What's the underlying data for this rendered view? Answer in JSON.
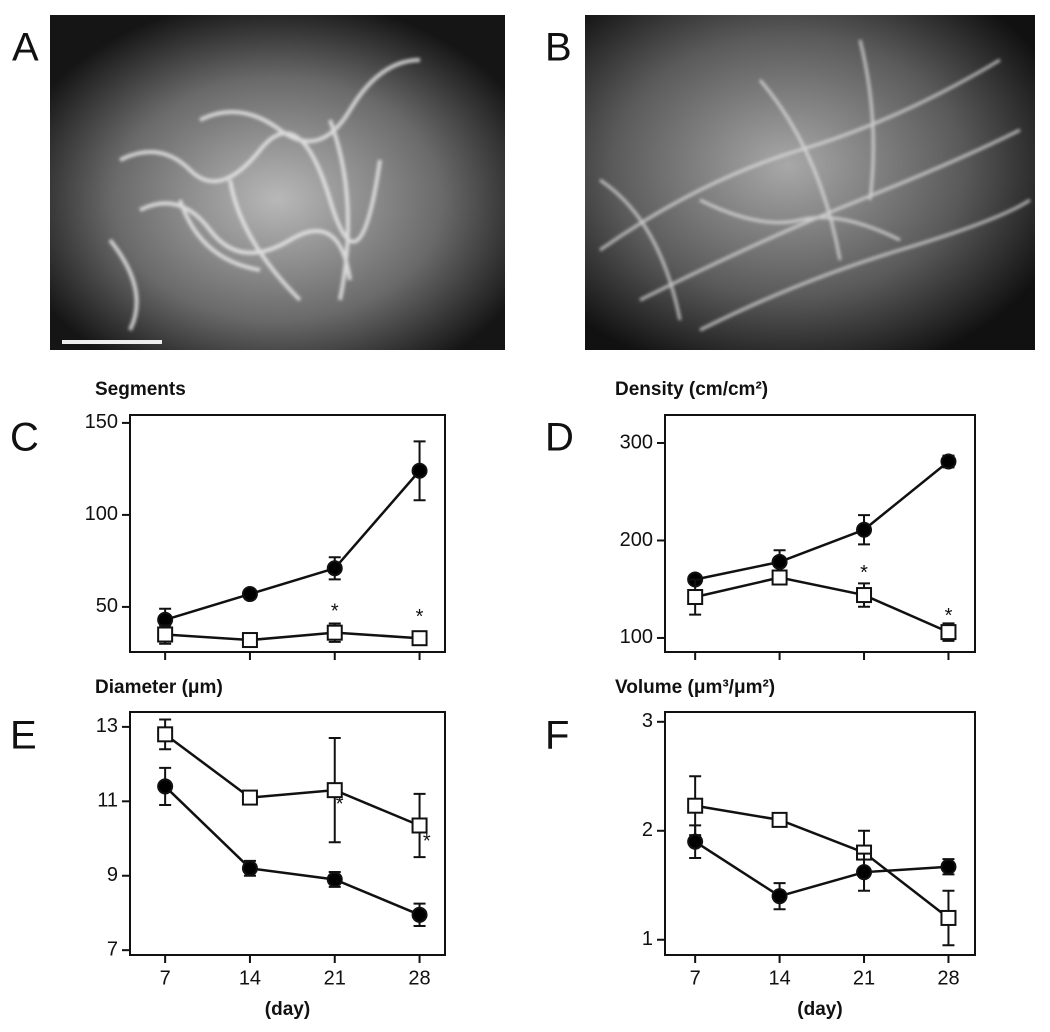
{
  "images": [
    {
      "label": "A"
    },
    {
      "label": "B"
    }
  ],
  "chart_data": [
    {
      "type": "line",
      "label": "C",
      "title": "Segments",
      "x": [
        7,
        14,
        21,
        28
      ],
      "xlim": [
        4.1,
        30.1
      ],
      "xticks": [
        7,
        14,
        21,
        28
      ],
      "xtick_labels": false,
      "ylim": [
        25.5,
        154.3
      ],
      "yticks": [
        50,
        100,
        150
      ],
      "series": [
        {
          "marker": "circle",
          "color": "#000000",
          "values": [
            43,
            57,
            71,
            124
          ],
          "errors": [
            6,
            2,
            6,
            16
          ]
        },
        {
          "marker": "square",
          "color": "#ffffff",
          "values": [
            35,
            32,
            36,
            33
          ],
          "errors": [
            5,
            3,
            5,
            3
          ]
        }
      ],
      "annotations": [
        {
          "text": "*",
          "x": 21,
          "y": 47
        },
        {
          "text": "*",
          "x": 28,
          "y": 44
        }
      ]
    },
    {
      "type": "line",
      "label": "D",
      "title": "Density (cm/cm²)",
      "x": [
        7,
        14,
        21,
        28
      ],
      "xlim": [
        4.5,
        30.2
      ],
      "xticks": [
        7,
        14,
        21,
        28
      ],
      "xtick_labels": false,
      "ylim": [
        85.6,
        328.7
      ],
      "yticks": [
        100,
        200,
        300
      ],
      "series": [
        {
          "marker": "circle",
          "color": "#000000",
          "values": [
            160,
            178,
            211,
            281
          ],
          "errors": [
            3,
            12,
            15,
            6
          ]
        },
        {
          "marker": "square",
          "color": "#ffffff",
          "values": [
            142,
            162,
            144,
            106
          ],
          "errors": [
            18,
            5,
            12,
            9
          ]
        }
      ],
      "annotations": [
        {
          "text": "*",
          "x": 21,
          "y": 166
        },
        {
          "text": "*",
          "x": 28,
          "y": 122
        }
      ]
    },
    {
      "type": "line",
      "label": "E",
      "title": "Diameter (μm)",
      "x": [
        7,
        14,
        21,
        28
      ],
      "xlim": [
        4.1,
        30.1
      ],
      "xticks": [
        7,
        14,
        21,
        28
      ],
      "xtick_labels": true,
      "xlabel": "(day)",
      "ylim": [
        6.87,
        13.4
      ],
      "yticks": [
        7,
        9,
        11,
        13
      ],
      "series": [
        {
          "marker": "square",
          "color": "#ffffff",
          "values": [
            12.8,
            11.1,
            11.3,
            10.35
          ],
          "errors": [
            0.4,
            0.1,
            1.4,
            0.85
          ]
        },
        {
          "marker": "circle",
          "color": "#000000",
          "values": [
            11.4,
            9.2,
            8.9,
            7.95
          ],
          "errors": [
            0.5,
            0.2,
            0.2,
            0.3
          ]
        }
      ],
      "annotations": [
        {
          "text": "*",
          "x": 21.4,
          "y": 10.9
        },
        {
          "text": "*",
          "x": 28.6,
          "y": 9.9
        }
      ]
    },
    {
      "type": "line",
      "label": "F",
      "title": "Volume (μm³/μm²)",
      "x": [
        7,
        14,
        21,
        28
      ],
      "xlim": [
        4.5,
        30.2
      ],
      "xticks": [
        7,
        14,
        21,
        28
      ],
      "xtick_labels": true,
      "xlabel": "(day)",
      "ylim": [
        0.86,
        3.09
      ],
      "yticks": [
        1,
        2,
        3
      ],
      "series": [
        {
          "marker": "square",
          "color": "#ffffff",
          "values": [
            2.23,
            2.1,
            1.8,
            1.2
          ],
          "errors": [
            0.27,
            0.03,
            0.2,
            0.25
          ]
        },
        {
          "marker": "circle",
          "color": "#000000",
          "values": [
            1.9,
            1.4,
            1.62,
            1.67
          ],
          "errors": [
            0.15,
            0.12,
            0.17,
            0.07
          ]
        }
      ]
    }
  ]
}
